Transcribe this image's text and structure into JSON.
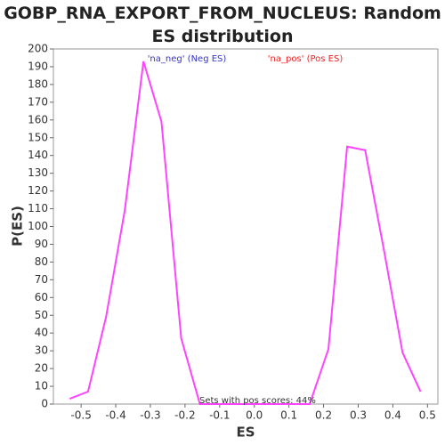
{
  "chart_data": {
    "type": "line",
    "title": "GOBP_RNA_EXPORT_FROM_NUCLEUS: Random ES distribution",
    "x_label": "ES",
    "y_label": "P(ES)",
    "x": [
      -0.533,
      -0.48,
      -0.428,
      -0.374,
      -0.32,
      -0.268,
      -0.211,
      -0.157,
      -0.103,
      -0.05,
      0.004,
      0.057,
      0.11,
      0.16,
      0.214,
      0.268,
      0.32,
      0.374,
      0.428,
      0.48
    ],
    "series": [
      {
        "name": "Random ES",
        "color": "#ff44ff",
        "values": [
          3,
          7,
          49,
          109,
          193,
          159,
          37,
          0,
          0,
          0,
          0,
          0,
          0,
          0,
          31,
          145,
          143,
          87,
          29,
          7
        ]
      }
    ],
    "xlim": [
      -0.58,
      0.53
    ],
    "ylim": [
      0,
      200
    ],
    "xticks": [
      -0.5,
      -0.4,
      -0.3,
      -0.2,
      -0.1,
      {
        "value": 0,
        "label": "0.0"
      },
      0.1,
      0.2,
      0.3,
      0.4,
      0.5
    ],
    "yticks": [
      0,
      10,
      20,
      30,
      40,
      50,
      60,
      70,
      80,
      90,
      100,
      110,
      120,
      130,
      140,
      150,
      160,
      170,
      180,
      190,
      200
    ],
    "grid": false,
    "annotations": [
      {
        "text": "'na_neg' (Neg ES)",
        "color": "#3333cc"
      },
      {
        "text": "'na_pos' (Pos ES)",
        "color": "#ee2222"
      },
      {
        "text": "Sets with pos scores: 44%",
        "color": "#333333"
      }
    ]
  }
}
